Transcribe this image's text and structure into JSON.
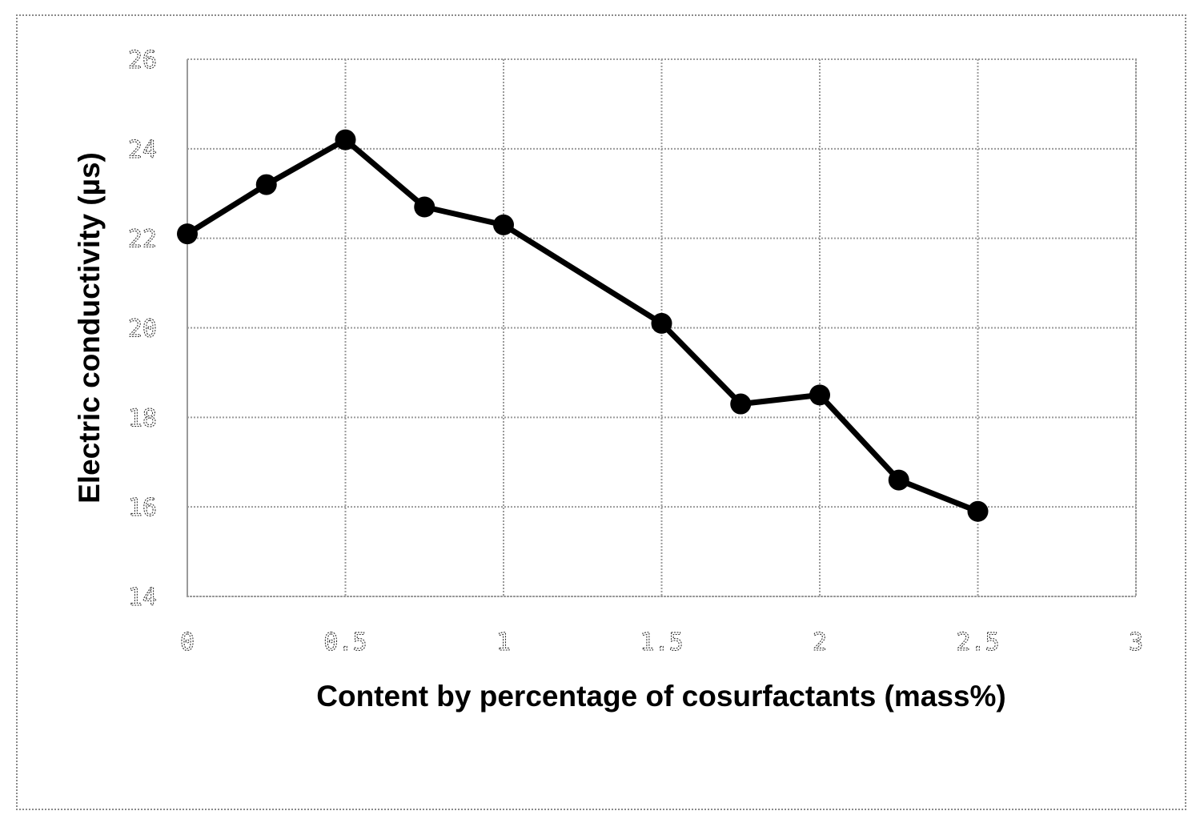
{
  "chart_data": {
    "type": "line",
    "title": "",
    "xlabel": "Content by percentage of cosurfactants (mass%)",
    "ylabel": "Electric conductivity (µs)",
    "xlim": [
      0,
      3
    ],
    "ylim": [
      14,
      26
    ],
    "x_ticks": [
      {
        "value": 0,
        "label": "0"
      },
      {
        "value": 0.5,
        "label": "0.5"
      },
      {
        "value": 1,
        "label": "1"
      },
      {
        "value": 1.5,
        "label": "1.5"
      },
      {
        "value": 2,
        "label": "2"
      },
      {
        "value": 2.5,
        "label": "2.5"
      },
      {
        "value": 3,
        "label": "3"
      }
    ],
    "y_ticks": [
      {
        "value": 14,
        "label": "14"
      },
      {
        "value": 16,
        "label": "16"
      },
      {
        "value": 18,
        "label": "18"
      },
      {
        "value": 20,
        "label": "20"
      },
      {
        "value": 22,
        "label": "22"
      },
      {
        "value": 24,
        "label": "24"
      },
      {
        "value": 26,
        "label": "26"
      }
    ],
    "grid": true,
    "legend": "none",
    "series": [
      {
        "color": "#000000",
        "x": [
          0,
          0.25,
          0.5,
          0.75,
          1,
          1.5,
          1.75,
          2,
          2.25,
          2.5
        ],
        "values": [
          22.1,
          23.2,
          24.2,
          22.7,
          22.3,
          20.1,
          18.3,
          18.5,
          16.6,
          15.9
        ]
      }
    ]
  }
}
